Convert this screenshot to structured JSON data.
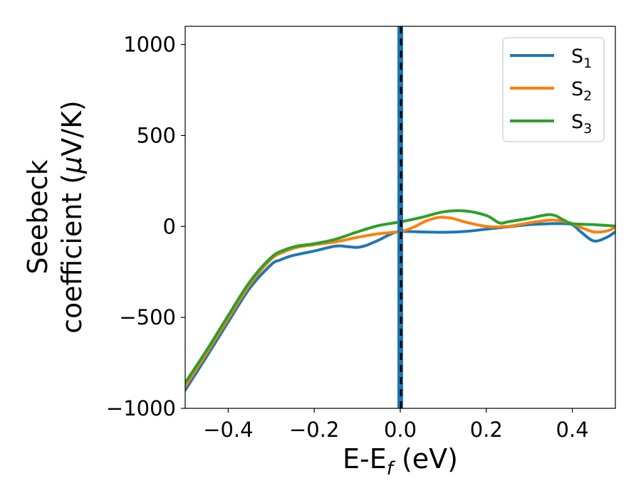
{
  "chart_data": {
    "type": "line",
    "xlabel": "E-E",
    "xlabel_sub": "f",
    "xlabel_unit": "(eV)",
    "ylabel_line1": "Seebeck",
    "ylabel_line2": "coefficient  (",
    "ylabel_mu": "μ",
    "ylabel_unit": "V/K)",
    "xlim": [
      -0.5,
      0.5
    ],
    "ylim": [
      -1000,
      1100
    ],
    "xticks": [
      -0.4,
      -0.2,
      0.0,
      0.2,
      0.4
    ],
    "xtick_labels": [
      "−0.4",
      "−0.2",
      "0.0",
      "0.2",
      "0.4"
    ],
    "yticks": [
      -1000,
      -500,
      0,
      500,
      1000
    ],
    "ytick_labels": [
      "−1000",
      "−500",
      "0",
      "500",
      "1000"
    ],
    "grid": false,
    "legend_position": "top-right",
    "vertical_line": {
      "x": 0.0,
      "style": "dashed",
      "colors": [
        "#000000",
        "#1f77b4"
      ]
    },
    "series": [
      {
        "name": "S",
        "sub": "1",
        "color": "#1f77b4",
        "x": [
          -0.5,
          -0.45,
          -0.4,
          -0.35,
          -0.3,
          -0.28,
          -0.25,
          -0.2,
          -0.15,
          -0.12,
          -0.1,
          -0.08,
          -0.05,
          -0.02,
          0.0,
          0.05,
          0.1,
          0.15,
          0.2,
          0.25,
          0.3,
          0.35,
          0.38,
          0.4,
          0.42,
          0.45,
          0.48,
          0.5
        ],
        "y": [
          -900,
          -715,
          -525,
          -340,
          -210,
          -185,
          -160,
          -135,
          -108,
          -112,
          -115,
          -105,
          -75,
          -40,
          -28,
          -30,
          -32,
          -28,
          -15,
          -2,
          10,
          15,
          15,
          10,
          -30,
          -80,
          -60,
          -30
        ]
      },
      {
        "name": "S",
        "sub": "2",
        "color": "#ff7f0e",
        "x": [
          -0.5,
          -0.45,
          -0.4,
          -0.35,
          -0.3,
          -0.27,
          -0.24,
          -0.2,
          -0.15,
          -0.1,
          -0.05,
          0.0,
          0.03,
          0.06,
          0.09,
          0.12,
          0.15,
          0.2,
          0.25,
          0.3,
          0.35,
          0.38,
          0.4,
          0.42,
          0.45,
          0.48,
          0.5
        ],
        "y": [
          -880,
          -695,
          -505,
          -320,
          -180,
          -140,
          -115,
          -100,
          -85,
          -60,
          -40,
          -28,
          -5,
          30,
          50,
          45,
          25,
          0,
          0,
          20,
          35,
          28,
          15,
          -5,
          -30,
          -25,
          -5
        ]
      },
      {
        "name": "S",
        "sub": "3",
        "color": "#2ca02c",
        "x": [
          -0.5,
          -0.45,
          -0.4,
          -0.35,
          -0.3,
          -0.27,
          -0.24,
          -0.2,
          -0.15,
          -0.1,
          -0.05,
          0.0,
          0.05,
          0.1,
          0.15,
          0.2,
          0.23,
          0.25,
          0.3,
          0.35,
          0.38,
          0.4,
          0.45,
          0.5
        ],
        "y": [
          -860,
          -680,
          -490,
          -305,
          -170,
          -130,
          -108,
          -95,
          -70,
          -30,
          5,
          25,
          50,
          80,
          85,
          60,
          20,
          25,
          45,
          65,
          35,
          15,
          10,
          2
        ]
      }
    ]
  }
}
